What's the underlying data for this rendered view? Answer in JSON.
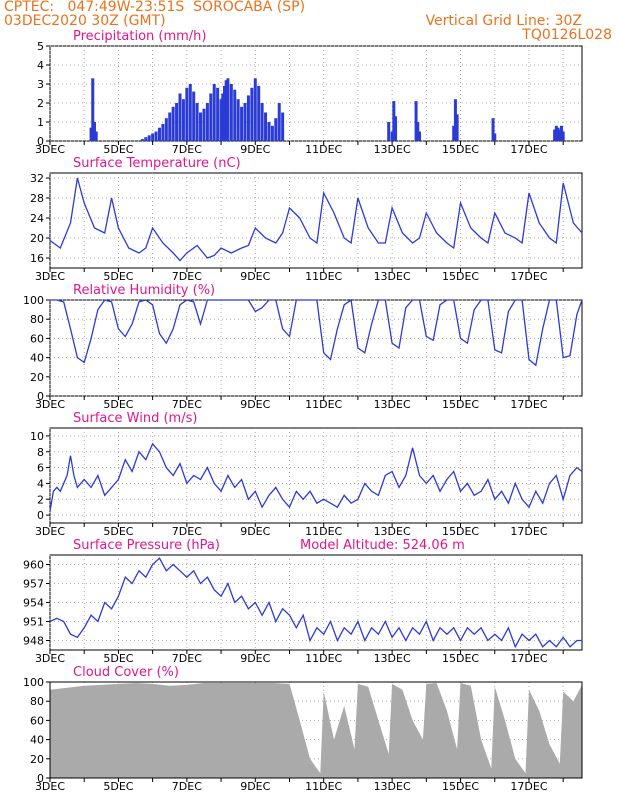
{
  "header": {
    "line1": "CPTEC:   047:49W-23:51S  SOROCABA (SP)",
    "line2": "03DEC2020 30Z (GMT)",
    "right1": "Vertical Grid Line: 30Z",
    "right2": "TQ0126L028"
  },
  "x_axis": {
    "start_day": 3,
    "end_day": 18.55,
    "tick_labels": [
      "3DEC",
      "5DEC",
      "7DEC",
      "9DEC",
      "11DEC",
      "13DEC",
      "15DEC",
      "17DEC"
    ],
    "tick_days": [
      3,
      5,
      7,
      9,
      11,
      13,
      15,
      17
    ]
  },
  "colors": {
    "line": "#2b3bd6",
    "title": "#e0178a",
    "header": "#e8731c",
    "cloud": "#aaaaaa"
  },
  "chart_data": [
    {
      "type": "bar",
      "title": "Precipitation (mm/h)",
      "ylim": [
        0,
        5
      ],
      "yticks": [
        0,
        1,
        2,
        3,
        4,
        5
      ],
      "x": [
        4.2,
        4.25,
        4.3,
        4.35,
        5.7,
        5.8,
        5.9,
        6.0,
        6.1,
        6.2,
        6.3,
        6.4,
        6.5,
        6.6,
        6.7,
        6.8,
        6.9,
        7.0,
        7.1,
        7.2,
        7.3,
        7.4,
        7.5,
        7.6,
        7.7,
        7.8,
        7.9,
        8.0,
        8.05,
        8.1,
        8.15,
        8.2,
        8.3,
        8.4,
        8.5,
        8.6,
        8.7,
        8.8,
        8.9,
        9.0,
        9.1,
        9.2,
        9.3,
        9.4,
        9.5,
        9.6,
        9.7,
        9.8,
        12.9,
        13.0,
        13.05,
        13.1,
        13.7,
        13.75,
        13.8,
        14.8,
        14.85,
        14.9,
        15.95,
        16.0,
        17.75,
        17.8,
        17.85,
        17.9,
        17.95,
        18.0
      ],
      "values": [
        0.7,
        3.3,
        1.0,
        0.5,
        0.1,
        0.2,
        0.3,
        0.4,
        0.5,
        0.7,
        0.9,
        1.2,
        1.5,
        1.8,
        2.0,
        2.5,
        2.2,
        2.8,
        3.0,
        2.6,
        2.0,
        1.5,
        1.7,
        2.0,
        2.5,
        3.0,
        2.8,
        2.2,
        2.5,
        2.9,
        3.2,
        3.3,
        3.0,
        2.7,
        2.2,
        1.8,
        2.0,
        2.4,
        2.8,
        3.3,
        2.9,
        2.0,
        1.5,
        1.0,
        0.8,
        1.2,
        2.0,
        1.5,
        1.0,
        0.5,
        2.1,
        1.3,
        2.1,
        1.0,
        0.5,
        0.8,
        2.2,
        1.4,
        1.2,
        0.4,
        0.6,
        0.8,
        0.7,
        0.6,
        0.8,
        0.5
      ]
    },
    {
      "type": "line",
      "title": "Surface Temperature (nC)",
      "ylim": [
        14,
        33
      ],
      "yticks": [
        16,
        20,
        24,
        28,
        32
      ],
      "x": [
        3.0,
        3.3,
        3.6,
        3.8,
        4.0,
        4.3,
        4.6,
        4.8,
        5.0,
        5.3,
        5.6,
        5.8,
        6.0,
        6.3,
        6.6,
        6.8,
        7.0,
        7.3,
        7.6,
        7.8,
        8.0,
        8.3,
        8.6,
        8.8,
        9.0,
        9.3,
        9.6,
        9.8,
        10.0,
        10.3,
        10.6,
        10.8,
        11.0,
        11.3,
        11.6,
        11.8,
        12.0,
        12.3,
        12.6,
        12.8,
        13.0,
        13.3,
        13.6,
        13.8,
        14.0,
        14.3,
        14.6,
        14.8,
        15.0,
        15.3,
        15.6,
        15.8,
        16.0,
        16.3,
        16.6,
        16.8,
        17.0,
        17.3,
        17.6,
        17.8,
        18.0,
        18.3,
        18.55
      ],
      "values": [
        19.5,
        18,
        23,
        32,
        27,
        22,
        21,
        28,
        22,
        18,
        17,
        18,
        22,
        19,
        17,
        15.5,
        17,
        18.5,
        16,
        16.5,
        18,
        17,
        18,
        18.5,
        22,
        20,
        19,
        21,
        26,
        24,
        20,
        19,
        29,
        25,
        20,
        19,
        28,
        22,
        19,
        19,
        26,
        21,
        19,
        20,
        25,
        21,
        19,
        18,
        27,
        22,
        20,
        19,
        25,
        21,
        20,
        19,
        29,
        23,
        20,
        19,
        31,
        23,
        21
      ]
    },
    {
      "type": "line",
      "title": "Relative Humidity (%)",
      "ylim": [
        0,
        100
      ],
      "yticks": [
        0,
        20,
        40,
        60,
        80,
        100
      ],
      "x": [
        3.0,
        3.2,
        3.4,
        3.6,
        3.8,
        4.0,
        4.2,
        4.4,
        4.6,
        4.8,
        5.0,
        5.2,
        5.4,
        5.6,
        5.8,
        6.0,
        6.2,
        6.4,
        6.6,
        6.8,
        7.0,
        7.2,
        7.4,
        7.6,
        7.8,
        8.0,
        8.2,
        8.4,
        8.6,
        8.8,
        9.0,
        9.2,
        9.4,
        9.6,
        9.8,
        10.0,
        10.2,
        10.4,
        10.6,
        10.8,
        11.0,
        11.2,
        11.4,
        11.6,
        11.8,
        12.0,
        12.2,
        12.4,
        12.6,
        12.8,
        13.0,
        13.2,
        13.4,
        13.6,
        13.8,
        14.0,
        14.2,
        14.4,
        14.6,
        14.8,
        15.0,
        15.2,
        15.4,
        15.6,
        15.8,
        16.0,
        16.2,
        16.4,
        16.6,
        16.8,
        17.0,
        17.2,
        17.4,
        17.6,
        17.8,
        18.0,
        18.2,
        18.4,
        18.55
      ],
      "values": [
        100,
        100,
        98,
        70,
        40,
        35,
        60,
        90,
        100,
        98,
        70,
        62,
        75,
        98,
        100,
        95,
        65,
        55,
        70,
        95,
        100,
        98,
        75,
        100,
        100,
        100,
        100,
        100,
        100,
        100,
        88,
        92,
        100,
        100,
        70,
        62,
        100,
        100,
        100,
        100,
        45,
        38,
        70,
        95,
        100,
        50,
        45,
        75,
        100,
        100,
        55,
        50,
        92,
        100,
        100,
        62,
        58,
        95,
        100,
        100,
        60,
        55,
        90,
        100,
        100,
        48,
        45,
        88,
        100,
        100,
        38,
        32,
        70,
        100,
        100,
        40,
        42,
        85,
        100
      ]
    },
    {
      "type": "line",
      "title": "Surface Wind (m/s)",
      "ylim": [
        -1,
        11
      ],
      "yticks": [
        0,
        2,
        4,
        6,
        8,
        10
      ],
      "x": [
        3.0,
        3.1,
        3.2,
        3.3,
        3.4,
        3.5,
        3.6,
        3.7,
        3.8,
        3.9,
        4.0,
        4.2,
        4.4,
        4.6,
        4.8,
        5.0,
        5.2,
        5.4,
        5.6,
        5.8,
        6.0,
        6.2,
        6.4,
        6.6,
        6.8,
        7.0,
        7.2,
        7.4,
        7.6,
        7.8,
        8.0,
        8.2,
        8.4,
        8.6,
        8.8,
        9.0,
        9.2,
        9.4,
        9.6,
        9.8,
        10.0,
        10.2,
        10.4,
        10.6,
        10.8,
        11.0,
        11.2,
        11.4,
        11.6,
        11.8,
        12.0,
        12.2,
        12.4,
        12.6,
        12.8,
        13.0,
        13.2,
        13.4,
        13.6,
        13.8,
        14.0,
        14.2,
        14.4,
        14.6,
        14.8,
        15.0,
        15.2,
        15.4,
        15.6,
        15.8,
        16.0,
        16.2,
        16.4,
        16.6,
        16.8,
        17.0,
        17.2,
        17.4,
        17.6,
        17.8,
        18.0,
        18.2,
        18.4,
        18.55
      ],
      "values": [
        0.5,
        3,
        3.5,
        3,
        4,
        5,
        7.5,
        5,
        3.5,
        4,
        4.5,
        3.5,
        5,
        2.5,
        3.5,
        4.5,
        7,
        5.5,
        8,
        7,
        9,
        8,
        6,
        5,
        6.5,
        4,
        5,
        4.5,
        6,
        4,
        3,
        5,
        3.5,
        4.5,
        2,
        3,
        1,
        2.5,
        3.5,
        2,
        1,
        3,
        2,
        3,
        1.5,
        2,
        1.5,
        1,
        2.5,
        1.5,
        2,
        4,
        3,
        2.5,
        5,
        5.5,
        3.5,
        5,
        8.5,
        5,
        4,
        5,
        3,
        4.5,
        5.5,
        3,
        4,
        2.5,
        3,
        4.5,
        2,
        3,
        1.5,
        4,
        2,
        1,
        3,
        1.5,
        4,
        5,
        2,
        5,
        6,
        5.5
      ]
    },
    {
      "type": "line",
      "title": "Surface Pressure (hPa)",
      "annotation": "Model Altitude: 524.06  m",
      "ylim": [
        946.5,
        961.5
      ],
      "yticks": [
        948,
        951,
        954,
        957,
        960
      ],
      "x": [
        3.0,
        3.2,
        3.4,
        3.6,
        3.8,
        4.0,
        4.2,
        4.4,
        4.6,
        4.8,
        5.0,
        5.2,
        5.4,
        5.6,
        5.8,
        6.0,
        6.2,
        6.4,
        6.6,
        6.8,
        7.0,
        7.2,
        7.4,
        7.6,
        7.8,
        8.0,
        8.2,
        8.4,
        8.6,
        8.8,
        9.0,
        9.2,
        9.4,
        9.6,
        9.8,
        10.0,
        10.2,
        10.4,
        10.6,
        10.8,
        11.0,
        11.2,
        11.4,
        11.6,
        11.8,
        12.0,
        12.2,
        12.4,
        12.6,
        12.8,
        13.0,
        13.2,
        13.4,
        13.6,
        13.8,
        14.0,
        14.2,
        14.4,
        14.6,
        14.8,
        15.0,
        15.2,
        15.4,
        15.6,
        15.8,
        16.0,
        16.2,
        16.4,
        16.6,
        16.8,
        17.0,
        17.2,
        17.4,
        17.6,
        17.8,
        18.0,
        18.2,
        18.4,
        18.55
      ],
      "values": [
        951,
        951.5,
        951,
        949,
        948.5,
        950,
        952,
        951,
        954,
        953,
        955,
        958,
        957,
        959,
        958,
        960,
        961,
        959,
        960,
        959,
        958,
        959,
        957,
        958,
        956,
        955,
        957,
        954,
        955,
        953,
        954,
        952,
        954,
        951,
        953,
        952,
        950,
        952,
        948,
        950,
        949,
        951,
        948,
        950,
        949,
        951,
        948,
        950,
        949,
        951,
        948.5,
        950,
        948,
        950,
        949,
        951,
        948,
        950,
        949,
        950,
        948,
        950,
        949,
        950,
        948,
        949,
        948,
        950,
        947,
        949,
        948,
        949,
        947,
        948,
        947,
        948.5,
        947,
        948,
        948
      ]
    },
    {
      "type": "area",
      "title": "Cloud Cover (%)",
      "ylim": [
        0,
        100
      ],
      "yticks": [
        0,
        20,
        40,
        60,
        80,
        100
      ],
      "x": [
        3.0,
        3.5,
        4.0,
        4.5,
        5.0,
        5.5,
        6.0,
        6.5,
        7.0,
        7.5,
        8.0,
        8.5,
        9.0,
        9.5,
        10.0,
        10.3,
        10.6,
        10.9,
        11.0,
        11.3,
        11.6,
        11.9,
        12.0,
        12.3,
        12.6,
        12.9,
        13.0,
        13.3,
        13.6,
        13.9,
        14.0,
        14.3,
        14.6,
        14.9,
        15.0,
        15.3,
        15.6,
        15.9,
        16.0,
        16.3,
        16.6,
        16.9,
        17.0,
        17.3,
        17.6,
        17.9,
        18.0,
        18.3,
        18.55
      ],
      "values": [
        92,
        94,
        96,
        97,
        98,
        99,
        98,
        96,
        97,
        99,
        99,
        99,
        99,
        99,
        98,
        60,
        20,
        5,
        90,
        40,
        75,
        30,
        98,
        95,
        60,
        25,
        98,
        92,
        60,
        40,
        98,
        99,
        70,
        30,
        99,
        96,
        40,
        10,
        95,
        60,
        20,
        5,
        92,
        70,
        35,
        15,
        90,
        80,
        97
      ]
    }
  ]
}
